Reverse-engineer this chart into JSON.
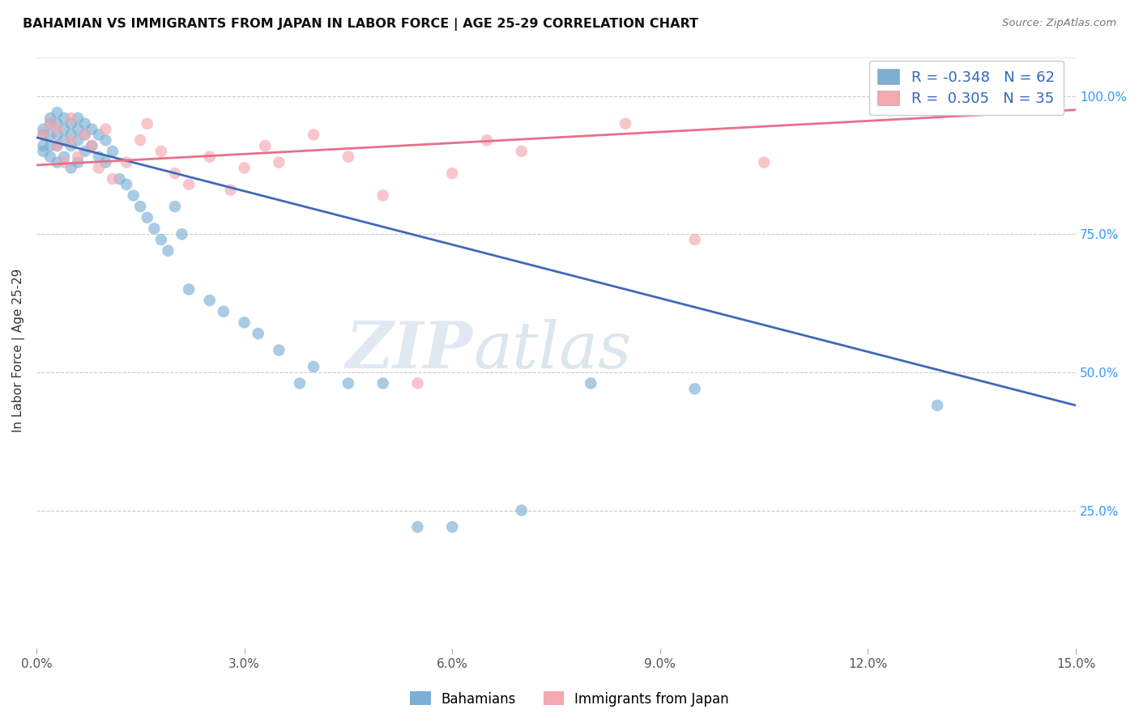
{
  "title": "BAHAMIAN VS IMMIGRANTS FROM JAPAN IN LABOR FORCE | AGE 25-29 CORRELATION CHART",
  "source": "Source: ZipAtlas.com",
  "ylabel": "In Labor Force | Age 25-29",
  "ytick_labels": [
    "",
    "25.0%",
    "50.0%",
    "75.0%",
    "100.0%"
  ],
  "ytick_positions": [
    0.0,
    0.25,
    0.5,
    0.75,
    1.0
  ],
  "xmin": 0.0,
  "xmax": 0.15,
  "ymin": 0.0,
  "ymax": 1.08,
  "legend_r_blue": "-0.348",
  "legend_n_blue": "62",
  "legend_r_pink": "0.305",
  "legend_n_pink": "35",
  "watermark_zip": "ZIP",
  "watermark_atlas": "atlas",
  "blue_color": "#7BAFD4",
  "pink_color": "#F4A8B0",
  "blue_line_color": "#4169B8",
  "pink_line_color": "#E8708A",
  "blue_line_x0": 0.0,
  "blue_line_y0": 0.925,
  "blue_line_x1": 0.15,
  "blue_line_y1": 0.44,
  "pink_line_x0": 0.0,
  "pink_line_y0": 0.875,
  "pink_line_x1": 0.15,
  "pink_line_y1": 0.975,
  "blue_scatter_x": [
    0.001,
    0.001,
    0.001,
    0.001,
    0.002,
    0.002,
    0.002,
    0.002,
    0.002,
    0.003,
    0.003,
    0.003,
    0.003,
    0.003,
    0.004,
    0.004,
    0.004,
    0.004,
    0.005,
    0.005,
    0.005,
    0.005,
    0.006,
    0.006,
    0.006,
    0.006,
    0.007,
    0.007,
    0.007,
    0.008,
    0.008,
    0.009,
    0.009,
    0.01,
    0.01,
    0.011,
    0.012,
    0.013,
    0.014,
    0.015,
    0.016,
    0.017,
    0.018,
    0.019,
    0.02,
    0.021,
    0.022,
    0.025,
    0.027,
    0.03,
    0.032,
    0.035,
    0.038,
    0.04,
    0.045,
    0.05,
    0.055,
    0.06,
    0.07,
    0.08,
    0.095,
    0.13
  ],
  "blue_scatter_y": [
    0.94,
    0.93,
    0.91,
    0.9,
    0.96,
    0.95,
    0.93,
    0.91,
    0.89,
    0.97,
    0.95,
    0.93,
    0.91,
    0.88,
    0.96,
    0.94,
    0.92,
    0.89,
    0.95,
    0.93,
    0.91,
    0.87,
    0.96,
    0.94,
    0.92,
    0.88,
    0.95,
    0.93,
    0.9,
    0.94,
    0.91,
    0.93,
    0.89,
    0.92,
    0.88,
    0.9,
    0.85,
    0.84,
    0.82,
    0.8,
    0.78,
    0.76,
    0.74,
    0.72,
    0.8,
    0.75,
    0.65,
    0.63,
    0.61,
    0.59,
    0.57,
    0.54,
    0.48,
    0.51,
    0.48,
    0.48,
    0.22,
    0.22,
    0.25,
    0.48,
    0.47,
    0.44
  ],
  "pink_scatter_x": [
    0.001,
    0.002,
    0.003,
    0.003,
    0.004,
    0.005,
    0.005,
    0.006,
    0.007,
    0.008,
    0.009,
    0.01,
    0.011,
    0.013,
    0.015,
    0.016,
    0.018,
    0.02,
    0.022,
    0.025,
    0.028,
    0.03,
    0.033,
    0.035,
    0.04,
    0.045,
    0.05,
    0.055,
    0.06,
    0.065,
    0.07,
    0.085,
    0.095,
    0.105,
    0.13
  ],
  "pink_scatter_y": [
    0.93,
    0.95,
    0.91,
    0.94,
    0.88,
    0.92,
    0.96,
    0.89,
    0.93,
    0.91,
    0.87,
    0.94,
    0.85,
    0.88,
    0.92,
    0.95,
    0.9,
    0.86,
    0.84,
    0.89,
    0.83,
    0.87,
    0.91,
    0.88,
    0.93,
    0.89,
    0.82,
    0.48,
    0.86,
    0.92,
    0.9,
    0.95,
    0.74,
    0.88,
    0.97
  ]
}
